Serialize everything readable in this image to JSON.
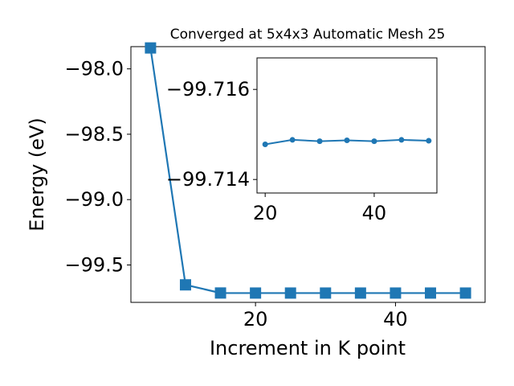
{
  "chart_data": [
    {
      "type": "line",
      "title": "Converged at 5x4x3 Automatic Mesh 25",
      "xlabel": "Increment in K point",
      "ylabel": "Energy (eV)",
      "xlim": [
        2.2,
        52.8
      ],
      "ylim": [
        -99.786,
        -97.83
      ],
      "x_ticks": [
        20,
        40
      ],
      "y_ticks": [
        -98.0,
        -98.5,
        -99.0,
        -99.5
      ],
      "x_tick_labels": [
        "20",
        "40"
      ],
      "y_tick_labels": [
        "−98.0",
        "−98.5",
        "−99.0",
        "−99.5"
      ],
      "grid": false,
      "series": [
        {
          "marker": "square",
          "color": "#1f77b4",
          "x": [
            5,
            10,
            15,
            20,
            25,
            30,
            35,
            40,
            45,
            50
          ],
          "y": [
            -97.84,
            -99.652,
            -99.7143,
            -99.7148,
            -99.7148,
            -99.7148,
            -99.7148,
            -99.7148,
            -99.7148,
            -99.7148
          ]
        }
      ]
    },
    {
      "type": "line",
      "title": "",
      "xlabel": "",
      "ylabel": "",
      "xlim": [
        18.5,
        51.5
      ],
      "ylim": [
        -99.7137,
        -99.7167
      ],
      "x_ticks": [
        20,
        40
      ],
      "y_ticks": [
        -99.716,
        -99.714
      ],
      "x_tick_labels": [
        "20",
        "40"
      ],
      "y_tick_labels": [
        "−99.716",
        "−99.714"
      ],
      "grid": false,
      "series": [
        {
          "marker": "circle",
          "color": "#1f77b4",
          "x": [
            20,
            25,
            30,
            35,
            40,
            45,
            50
          ],
          "y": [
            -99.71478,
            -99.71488,
            -99.71485,
            -99.71487,
            -99.71485,
            -99.71488,
            -99.71486
          ]
        }
      ]
    }
  ]
}
